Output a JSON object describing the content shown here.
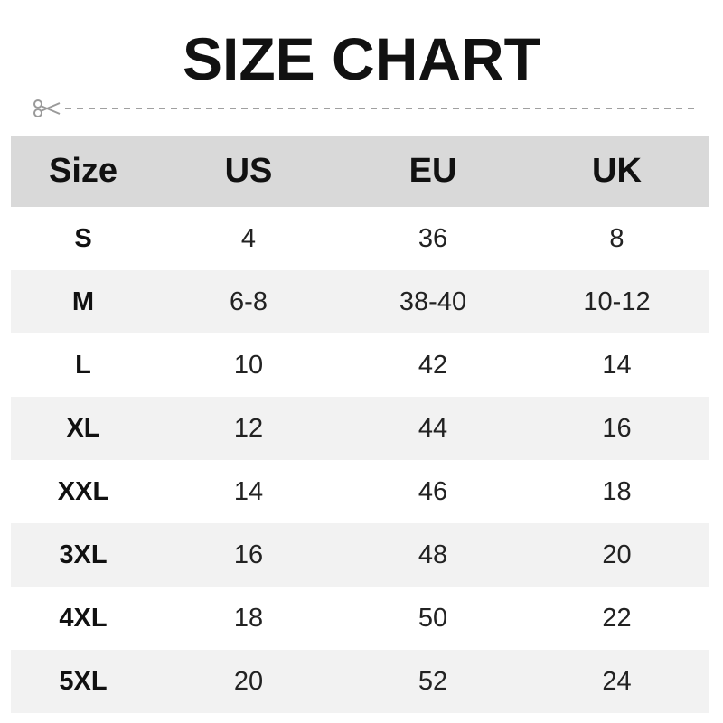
{
  "title": "SIZE CHART",
  "icons": {
    "cut_line": "scissors-icon"
  },
  "colors": {
    "header_bg": "#d9d9d9",
    "alt_row_bg": "#f2f2f2",
    "cut_line": "#a0a0a0"
  },
  "table": {
    "headers": [
      "Size",
      "US",
      "EU",
      "UK"
    ],
    "rows": [
      [
        "S",
        "4",
        "36",
        "8"
      ],
      [
        "M",
        "6-8",
        "38-40",
        "10-12"
      ],
      [
        "L",
        "10",
        "42",
        "14"
      ],
      [
        "XL",
        "12",
        "44",
        "16"
      ],
      [
        "XXL",
        "14",
        "46",
        "18"
      ],
      [
        "3XL",
        "16",
        "48",
        "20"
      ],
      [
        "4XL",
        "18",
        "50",
        "22"
      ],
      [
        "5XL",
        "20",
        "52",
        "24"
      ]
    ]
  }
}
